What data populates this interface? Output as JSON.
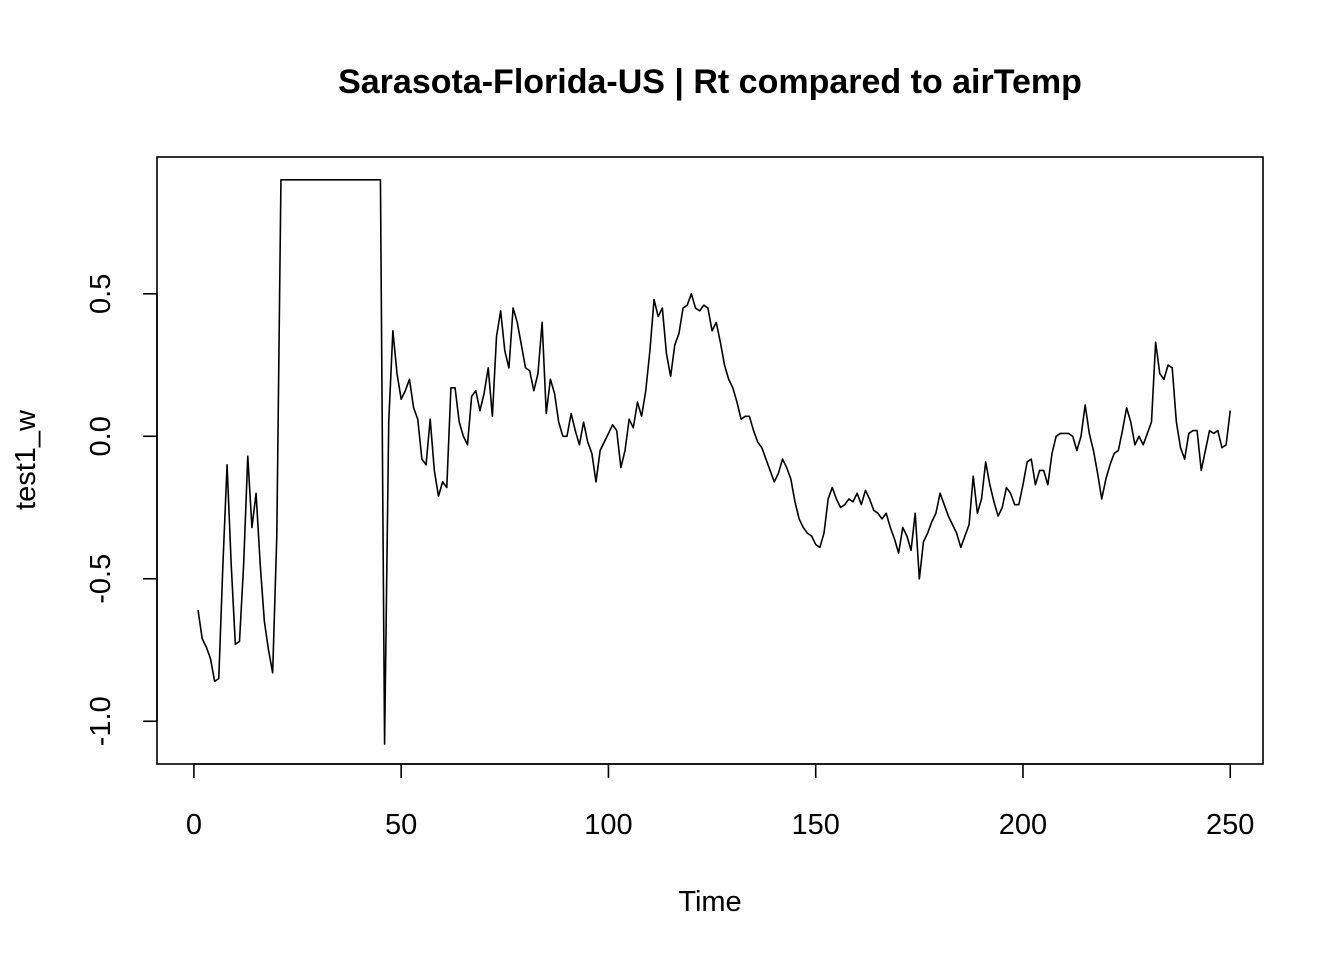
{
  "chart_data": {
    "type": "line",
    "title": "Sarasota-Florida-US | Rt compared to airTemp",
    "xlabel": "Time",
    "ylabel": "test1_w",
    "xlim": [
      -8.9,
      257.9
    ],
    "ylim": [
      -1.15,
      0.98
    ],
    "x_ticks": [
      0,
      50,
      100,
      150,
      200,
      250
    ],
    "y_ticks": [
      -1.0,
      -0.5,
      0.0,
      0.5
    ],
    "x_tick_labels": [
      "0",
      "50",
      "100",
      "150",
      "200",
      "250"
    ],
    "y_tick_labels": [
      "-1.0",
      "-0.5",
      "0.0",
      "0.5"
    ],
    "grid": false,
    "legend": "none",
    "line_color": "#000000",
    "series": [
      {
        "x_start": 1,
        "x_step": 1,
        "values": [
          -0.61,
          -0.71,
          -0.74,
          -0.78,
          -0.86,
          -0.85,
          -0.45,
          -0.1,
          -0.45,
          -0.73,
          -0.72,
          -0.45,
          -0.07,
          -0.32,
          -0.2,
          -0.45,
          -0.65,
          -0.75,
          -0.83,
          -0.35,
          0.9,
          0.9,
          0.9,
          0.9,
          0.9,
          0.9,
          0.9,
          0.9,
          0.9,
          0.9,
          0.9,
          0.9,
          0.9,
          0.9,
          0.9,
          0.9,
          0.9,
          0.9,
          0.9,
          0.9,
          0.9,
          0.9,
          0.9,
          0.9,
          0.9,
          -1.08,
          0.05,
          0.37,
          0.22,
          0.13,
          0.16,
          0.2,
          0.1,
          0.06,
          -0.08,
          -0.1,
          0.06,
          -0.12,
          -0.21,
          -0.16,
          -0.18,
          0.17,
          0.17,
          0.05,
          0.0,
          -0.03,
          0.14,
          0.16,
          0.09,
          0.15,
          0.24,
          0.07,
          0.35,
          0.44,
          0.3,
          0.24,
          0.45,
          0.4,
          0.32,
          0.24,
          0.23,
          0.16,
          0.22,
          0.4,
          0.08,
          0.2,
          0.15,
          0.05,
          0.0,
          0.0,
          0.08,
          0.02,
          -0.03,
          0.05,
          -0.02,
          -0.06,
          -0.16,
          -0.05,
          -0.02,
          0.01,
          0.04,
          0.02,
          -0.11,
          -0.05,
          0.06,
          0.03,
          0.12,
          0.07,
          0.16,
          0.3,
          0.48,
          0.42,
          0.45,
          0.29,
          0.21,
          0.32,
          0.36,
          0.45,
          0.46,
          0.5,
          0.45,
          0.44,
          0.46,
          0.45,
          0.37,
          0.4,
          0.33,
          0.25,
          0.2,
          0.17,
          0.12,
          0.06,
          0.07,
          0.07,
          0.02,
          -0.02,
          -0.04,
          -0.08,
          -0.12,
          -0.16,
          -0.13,
          -0.08,
          -0.11,
          -0.15,
          -0.23,
          -0.29,
          -0.32,
          -0.34,
          -0.35,
          -0.38,
          -0.39,
          -0.34,
          -0.22,
          -0.18,
          -0.22,
          -0.25,
          -0.24,
          -0.22,
          -0.23,
          -0.2,
          -0.24,
          -0.19,
          -0.22,
          -0.26,
          -0.27,
          -0.29,
          -0.27,
          -0.32,
          -0.36,
          -0.41,
          -0.32,
          -0.35,
          -0.4,
          -0.27,
          -0.5,
          -0.37,
          -0.34,
          -0.3,
          -0.27,
          -0.2,
          -0.24,
          -0.28,
          -0.31,
          -0.34,
          -0.39,
          -0.35,
          -0.31,
          -0.14,
          -0.27,
          -0.22,
          -0.09,
          -0.17,
          -0.23,
          -0.28,
          -0.25,
          -0.18,
          -0.2,
          -0.24,
          -0.24,
          -0.17,
          -0.09,
          -0.08,
          -0.17,
          -0.12,
          -0.12,
          -0.17,
          -0.06,
          0.0,
          0.01,
          0.01,
          0.01,
          0.0,
          -0.05,
          0.0,
          0.11,
          0.01,
          -0.05,
          -0.13,
          -0.22,
          -0.15,
          -0.1,
          -0.06,
          -0.05,
          0.02,
          0.1,
          0.05,
          -0.03,
          0.0,
          -0.03,
          0.01,
          0.05,
          0.33,
          0.22,
          0.2,
          0.25,
          0.24,
          0.05,
          -0.04,
          -0.08,
          0.01,
          0.02,
          0.02,
          -0.12,
          -0.05,
          0.02,
          0.01,
          0.02,
          -0.04,
          -0.03,
          0.09
        ]
      }
    ]
  }
}
